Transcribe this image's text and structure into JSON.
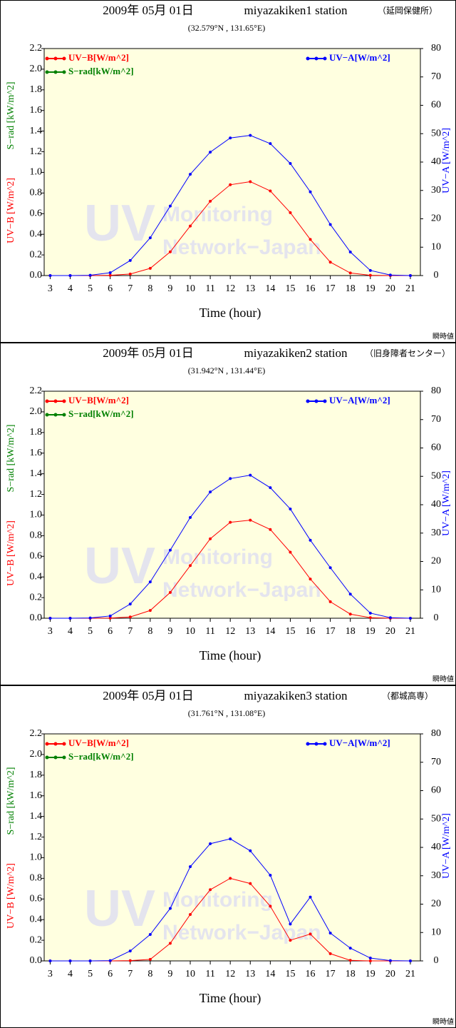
{
  "chart_data": [
    {
      "type": "line",
      "title": "2009年 05月 01日",
      "station": "miyazakiken1 station",
      "location": "（延岡保健所）",
      "coordinates": "(32.579°N , 131.65°E)",
      "xlabel": "Time (hour)",
      "ylabel": "UV−B [W/m^2]",
      "ylabel_srad": "S−rad [kW/m^2]",
      "y2label": "UV−A [W/m^2]",
      "watermark": [
        "UV",
        "Monitoring",
        "Network−Japan"
      ],
      "note": "瞬時値",
      "x": [
        3,
        4,
        5,
        6,
        7,
        8,
        9,
        10,
        11,
        12,
        13,
        14,
        15,
        16,
        17,
        18,
        19,
        20,
        21
      ],
      "series": [
        {
          "name": "UV−B[W/m^2]",
          "color": "#ff0000",
          "values": [
            0,
            0,
            0,
            0.003,
            0.015,
            0.07,
            0.23,
            0.48,
            0.72,
            0.88,
            0.91,
            0.82,
            0.61,
            0.35,
            0.13,
            0.025,
            0.003,
            0,
            0
          ]
        },
        {
          "name": "S−rad[kW/m^2]",
          "color": "#008000",
          "values": [
            null,
            null,
            null,
            null,
            null,
            null,
            null,
            null,
            null,
            null,
            null,
            null,
            null,
            null,
            null,
            null,
            null,
            null,
            null
          ]
        },
        {
          "name": "UV−A[W/m^2]",
          "color": "#0000ff",
          "axis": "y2",
          "values": [
            0,
            0,
            0.1,
            1,
            5.3,
            13.3,
            24.5,
            35.7,
            43.5,
            48.5,
            49.4,
            46.5,
            39.5,
            29.5,
            18,
            8.3,
            1.8,
            0.2,
            0
          ]
        }
      ],
      "xlim": [
        2.7,
        21.5
      ],
      "xticks": [
        3,
        4,
        5,
        6,
        7,
        8,
        9,
        10,
        11,
        12,
        13,
        14,
        15,
        16,
        17,
        18,
        19,
        20,
        21
      ],
      "ylim": [
        0,
        2.2
      ],
      "yticks": [
        {
          "value": 0,
          "label": "0.0"
        },
        0.2,
        0.4,
        0.6,
        0.8,
        {
          "value": 1,
          "label": "1.0"
        },
        1.2,
        1.4,
        1.6,
        1.8,
        {
          "value": 2,
          "label": "2.0"
        },
        2.2
      ],
      "y2lim": [
        0,
        80
      ],
      "y2ticks": [
        0,
        10,
        20,
        30,
        40,
        50,
        60,
        70,
        80
      ]
    },
    {
      "type": "line",
      "title": "2009年 05月 01日",
      "station": "miyazakiken2 station",
      "location": "（旧身障者センター）",
      "coordinates": "(31.942°N , 131.44°E)",
      "xlabel": "Time (hour)",
      "ylabel": "UV−B [W/m^2]",
      "ylabel_srad": "S−rad [kW/m^2]",
      "y2label": "UV−A [W/m^2]",
      "watermark": [
        "UV",
        "Monitoring",
        "Network−Japan"
      ],
      "note": "瞬時値",
      "x": [
        3,
        4,
        5,
        6,
        7,
        8,
        9,
        10,
        11,
        12,
        13,
        14,
        15,
        16,
        17,
        18,
        19,
        20,
        21
      ],
      "series": [
        {
          "name": "UV−B[W/m^2]",
          "color": "#ff0000",
          "values": [
            0,
            0,
            0,
            0.002,
            0.012,
            0.075,
            0.25,
            0.51,
            0.77,
            0.93,
            0.95,
            0.86,
            0.64,
            0.38,
            0.16,
            0.04,
            0.005,
            0,
            0
          ]
        },
        {
          "name": "S−rad[kW/m^2]",
          "color": "#008000",
          "values": [
            null,
            null,
            null,
            null,
            null,
            null,
            null,
            null,
            null,
            null,
            null,
            null,
            null,
            null,
            null,
            null,
            null,
            null,
            null
          ]
        },
        {
          "name": "UV−A[W/m^2]",
          "color": "#0000ff",
          "axis": "y2",
          "values": [
            0,
            0,
            0.1,
            0.8,
            5,
            12.8,
            24,
            35.5,
            44.5,
            49.2,
            50.4,
            46,
            38.5,
            27.5,
            17.8,
            8.5,
            1.8,
            0.2,
            0
          ]
        }
      ],
      "xlim": [
        2.7,
        21.5
      ],
      "xticks": [
        3,
        4,
        5,
        6,
        7,
        8,
        9,
        10,
        11,
        12,
        13,
        14,
        15,
        16,
        17,
        18,
        19,
        20,
        21
      ],
      "ylim": [
        0,
        2.2
      ],
      "yticks": [
        {
          "value": 0,
          "label": "0.0"
        },
        0.2,
        0.4,
        0.6,
        0.8,
        {
          "value": 1,
          "label": "1.0"
        },
        1.2,
        1.4,
        1.6,
        1.8,
        {
          "value": 2,
          "label": "2.0"
        },
        2.2
      ],
      "y2lim": [
        0,
        80
      ],
      "y2ticks": [
        0,
        10,
        20,
        30,
        40,
        50,
        60,
        70,
        80
      ]
    },
    {
      "type": "line",
      "title": "2009年 05月 01日",
      "station": "miyazakiken3 station",
      "location": "（都城高専）",
      "coordinates": "(31.761°N , 131.08°E)",
      "xlabel": "Time (hour)",
      "ylabel": "UV−B [W/m^2]",
      "ylabel_srad": "S−rad [kW/m^2]",
      "y2label": "UV−A [W/m^2]",
      "watermark": [
        "UV",
        "Monitoring",
        "Network−Japan"
      ],
      "note": "瞬時値",
      "x": [
        3,
        4,
        5,
        6,
        7,
        8,
        9,
        10,
        11,
        12,
        13,
        14,
        15,
        16,
        17,
        18,
        19,
        20,
        21
      ],
      "series": [
        {
          "name": "UV−B[W/m^2]",
          "color": "#ff0000",
          "values": [
            0,
            0,
            0,
            0,
            0.003,
            0.015,
            0.17,
            0.45,
            0.69,
            0.8,
            0.75,
            0.53,
            0.2,
            0.26,
            0.07,
            0.005,
            0,
            0,
            0
          ]
        },
        {
          "name": "S−rad[kW/m^2]",
          "color": "#008000",
          "values": [
            null,
            null,
            null,
            null,
            null,
            null,
            null,
            null,
            null,
            null,
            null,
            null,
            null,
            null,
            null,
            null,
            null,
            null,
            null
          ]
        },
        {
          "name": "UV−A[W/m^2]",
          "color": "#0000ff",
          "axis": "y2",
          "values": [
            0,
            0,
            0,
            0.1,
            3.5,
            9.3,
            18.5,
            33.2,
            41.3,
            43,
            38.8,
            30.2,
            13,
            22.5,
            9.8,
            4.5,
            1,
            0.1,
            0
          ]
        }
      ],
      "xlim": [
        2.7,
        21.5
      ],
      "xticks": [
        3,
        4,
        5,
        6,
        7,
        8,
        9,
        10,
        11,
        12,
        13,
        14,
        15,
        16,
        17,
        18,
        19,
        20,
        21
      ],
      "ylim": [
        0,
        2.2
      ],
      "yticks": [
        {
          "value": 0,
          "label": "0.0"
        },
        0.2,
        0.4,
        0.6,
        0.8,
        {
          "value": 1,
          "label": "1.0"
        },
        1.2,
        1.4,
        1.6,
        1.8,
        {
          "value": 2,
          "label": "2.0"
        },
        2.2
      ],
      "y2lim": [
        0,
        80
      ],
      "y2ticks": [
        0,
        10,
        20,
        30,
        40,
        50,
        60,
        70,
        80
      ]
    }
  ]
}
